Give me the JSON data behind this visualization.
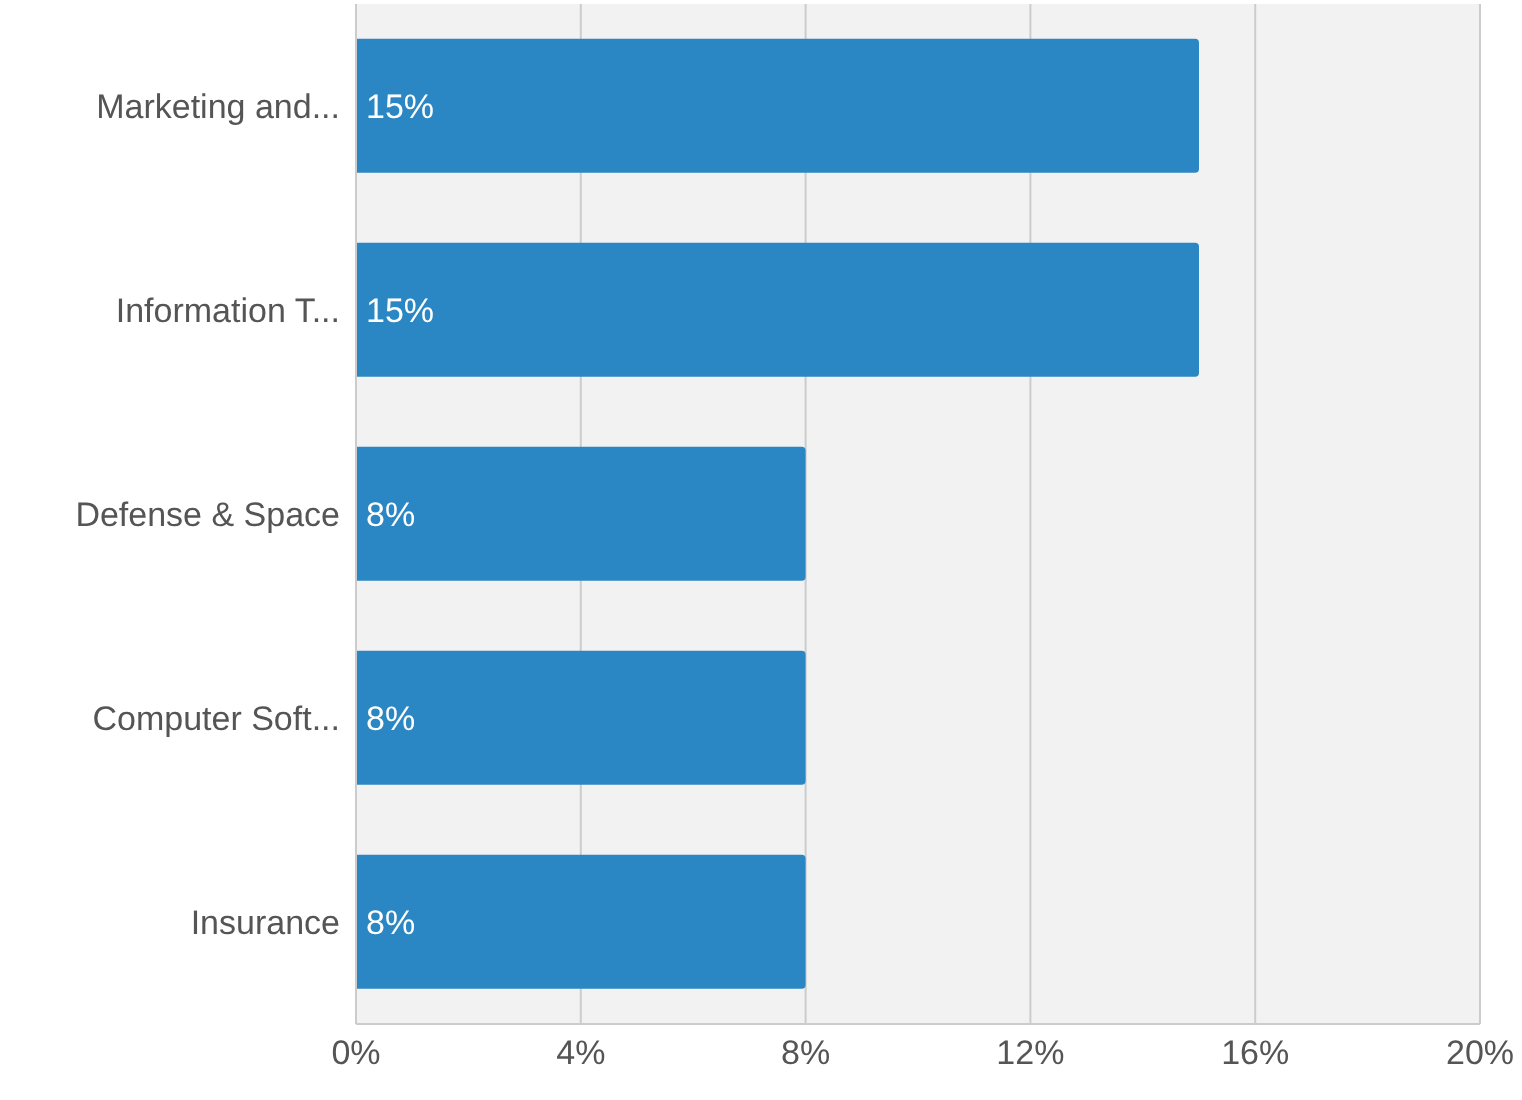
{
  "chart_data": {
    "type": "bar",
    "orientation": "horizontal",
    "categories": [
      "Marketing and...",
      "Information T...",
      "Defense & Space",
      "Computer Soft...",
      "Insurance"
    ],
    "values": [
      15,
      15,
      8,
      8,
      8
    ],
    "value_labels": [
      "15%",
      "15%",
      "8%",
      "8%",
      "8%"
    ],
    "color": "#2b87c3",
    "xlim": [
      0,
      20
    ],
    "xticks": [
      {
        "value": 0,
        "label": "0%"
      },
      {
        "value": 4,
        "label": "4%"
      },
      {
        "value": 8,
        "label": "8%"
      },
      {
        "value": 12,
        "label": "12%"
      },
      {
        "value": 16,
        "label": "16%"
      },
      {
        "value": 20,
        "label": "20%"
      }
    ],
    "grid": "x",
    "legend": false
  }
}
